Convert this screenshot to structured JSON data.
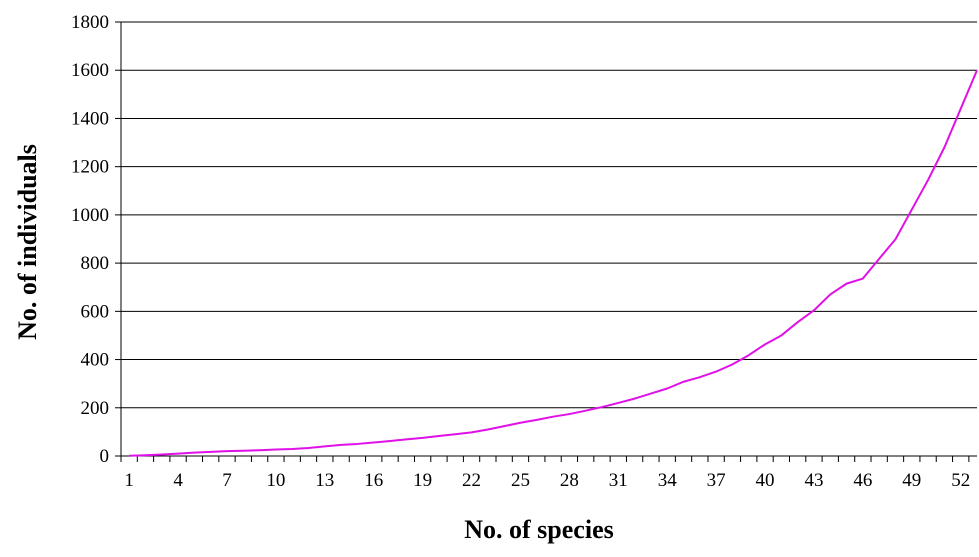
{
  "chart_data": {
    "type": "line",
    "title": "",
    "xlabel": "No. of species",
    "ylabel": "No. of individuals",
    "ylim": [
      0,
      1800
    ],
    "yticks": [
      0,
      200,
      400,
      600,
      800,
      1000,
      1200,
      1400,
      1600,
      1800
    ],
    "grid": "horizontal",
    "legend": "none",
    "x_tick_labels": [
      "1",
      "4",
      "7",
      "10",
      "13",
      "16",
      "19",
      "22",
      "25",
      "28",
      "31",
      "34",
      "37",
      "40",
      "43",
      "46",
      "49",
      "52"
    ],
    "line_color": "#e010e8",
    "x": [
      1,
      2,
      3,
      4,
      5,
      6,
      7,
      8,
      9,
      10,
      11,
      12,
      13,
      14,
      15,
      16,
      17,
      18,
      19,
      20,
      21,
      22,
      23,
      24,
      25,
      26,
      27,
      28,
      29,
      30,
      31,
      32,
      33,
      34,
      35,
      36,
      37,
      38,
      39,
      40,
      41,
      42,
      43,
      44,
      45,
      46,
      47,
      48,
      49,
      50,
      51,
      52,
      53
    ],
    "series": [
      {
        "values": [
          1,
          3,
          6,
          10,
          14,
          17,
          20,
          22,
          24,
          27,
          29,
          33,
          40,
          46,
          50,
          56,
          62,
          69,
          75,
          83,
          90,
          98,
          110,
          124,
          138,
          150,
          163,
          174,
          188,
          203,
          220,
          238,
          259,
          280,
          308,
          327,
          350,
          380,
          418,
          463,
          500,
          555,
          604,
          670,
          715,
          736,
          818,
          899,
          1022,
          1145,
          1280,
          1440,
          1600
        ]
      }
    ]
  }
}
